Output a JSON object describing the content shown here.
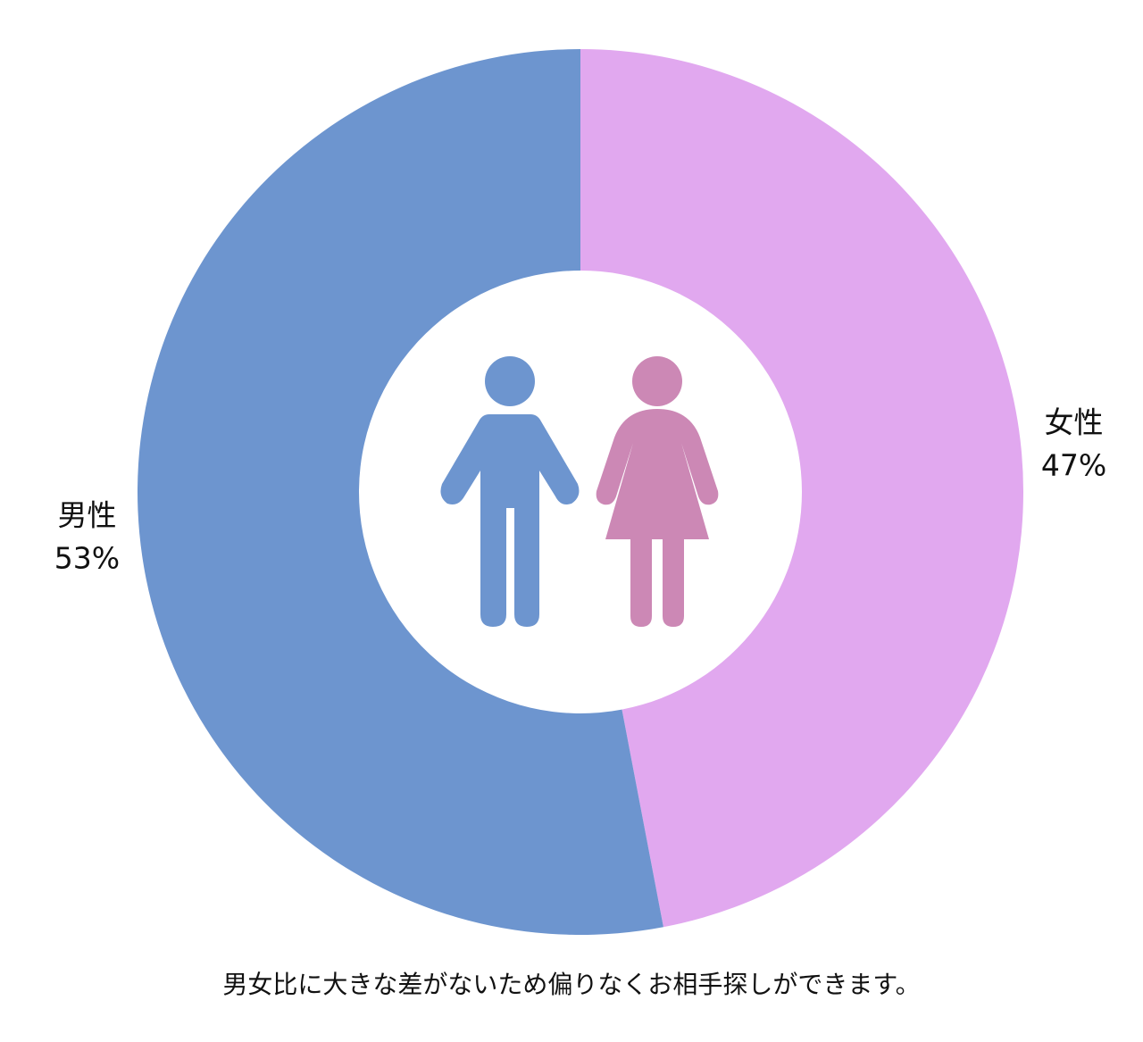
{
  "chart_data": {
    "type": "donut",
    "categories": [
      "女性",
      "男性"
    ],
    "values": [
      47,
      53
    ],
    "value_labels": [
      "47%",
      "53%"
    ],
    "colors": [
      "#e1a8ef",
      "#6d95cf"
    ],
    "caption": "男女比に大きな差がないため偏りなくお相手探しができます。"
  }
}
